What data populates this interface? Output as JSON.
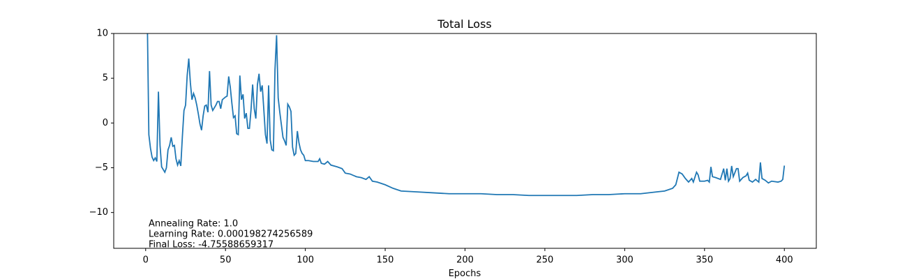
{
  "chart_data": {
    "type": "line",
    "title": "Total Loss",
    "x_label": "Epochs",
    "annotations": [
      "Annealing Rate: 1.0",
      "Learning Rate: 0.000198274256589",
      "Final Loss: -4.75588659317"
    ],
    "xlim": [
      -20,
      420
    ],
    "ylim": [
      -14,
      10
    ],
    "xticks": [
      0,
      50,
      100,
      150,
      200,
      250,
      300,
      350,
      400
    ],
    "yticks": [
      {
        "value": -10,
        "label": "−10"
      },
      {
        "value": -5,
        "label": "−5"
      },
      0,
      5,
      10
    ],
    "series": [
      {
        "name": "Total Loss",
        "color": "#1f77b4",
        "x": [
          1,
          2,
          3,
          4,
          5,
          6,
          7,
          8,
          9,
          10,
          12,
          13,
          14,
          15,
          16,
          17,
          18,
          19,
          20,
          21,
          22,
          23,
          24,
          25,
          26,
          27,
          28,
          29,
          30,
          31,
          32,
          33,
          34,
          35,
          36,
          37,
          38,
          39,
          40,
          41,
          42,
          44,
          45,
          46,
          47,
          48,
          50,
          51,
          52,
          53,
          54,
          55,
          56,
          57,
          58,
          59,
          60,
          61,
          62,
          63,
          64,
          65,
          66,
          67,
          68,
          69,
          70,
          71,
          72,
          73,
          74,
          75,
          76,
          77,
          78,
          79,
          80,
          81,
          82,
          83,
          84,
          85,
          86,
          87,
          88,
          89,
          90,
          91,
          92,
          93,
          94,
          95,
          96,
          97,
          98,
          99,
          100,
          102,
          105,
          108,
          109,
          110,
          112,
          114,
          116,
          120,
          123,
          125,
          128,
          132,
          135,
          138,
          140,
          142,
          145,
          150,
          155,
          160,
          170,
          180,
          190,
          200,
          210,
          220,
          230,
          240,
          250,
          260,
          270,
          280,
          290,
          300,
          310,
          320,
          325,
          330,
          332,
          334,
          336,
          338,
          340,
          342,
          343,
          345,
          346,
          347,
          350,
          352,
          353,
          354,
          355,
          357,
          360,
          362,
          363,
          364,
          365,
          366,
          367,
          368,
          370,
          371,
          372,
          374,
          376,
          377,
          378,
          380,
          382,
          384,
          385,
          386,
          388,
          390,
          392,
          396,
          398,
          399,
          400
        ],
        "values": [
          12,
          -1.3,
          -2.8,
          -3.8,
          -4.2,
          -3.9,
          -4.3,
          3.5,
          -2.5,
          -4.9,
          -5.5,
          -5.0,
          -3,
          -2.5,
          -1.6,
          -2.6,
          -2.5,
          -4,
          -4.7,
          -4.2,
          -4.8,
          -1.5,
          1.4,
          2,
          5.3,
          7.2,
          4.5,
          2.6,
          3.3,
          2.8,
          2,
          1,
          -0.1,
          -0.8,
          0.8,
          1.9,
          2,
          1.2,
          5.8,
          2,
          1.4,
          2,
          2.4,
          2.4,
          1.6,
          2.6,
          2.9,
          3,
          5.2,
          4,
          2.2,
          0.6,
          0.8,
          -1.2,
          -1.3,
          5.3,
          2.6,
          3.2,
          0.5,
          1.1,
          -0.6,
          -0.6,
          1.5,
          4.3,
          1.6,
          0.5,
          4.3,
          5.5,
          3.5,
          4.2,
          1.5,
          -1.3,
          -2.3,
          4.2,
          -1.9,
          -3,
          -3.1,
          6,
          9.8,
          2.8,
          1.2,
          -0.2,
          -1.6,
          -2,
          -2.5,
          2.1,
          1.8,
          1.3,
          -2.7,
          -3.6,
          -3.4,
          -0.9,
          -2.2,
          -3,
          -3.4,
          -3.6,
          -4.2,
          -4.2,
          -4.3,
          -4.3,
          -4.0,
          -4.5,
          -4.6,
          -4.3,
          -4.7,
          -4.9,
          -5.1,
          -5.6,
          -5.7,
          -6.0,
          -6.1,
          -6.3,
          -6.0,
          -6.5,
          -6.6,
          -6.9,
          -7.3,
          -7.6,
          -7.7,
          -7.8,
          -7.9,
          -7.9,
          -7.9,
          -8.0,
          -8.0,
          -8.1,
          -8.1,
          -8.1,
          -8.1,
          -8.0,
          -8.0,
          -7.9,
          -7.9,
          -7.7,
          -7.6,
          -7.3,
          -6.9,
          -5.5,
          -5.7,
          -6.2,
          -6.6,
          -6.2,
          -6.6,
          -5.5,
          -5.8,
          -6.5,
          -6.5,
          -6.4,
          -6.6,
          -4.9,
          -6,
          -6.1,
          -6.3,
          -5.1,
          -6.4,
          -5.1,
          -6.5,
          -6.2,
          -4.8,
          -6,
          -5.1,
          -5.1,
          -6.5,
          -6.1,
          -5.9,
          -5.6,
          -6.4,
          -6.6,
          -6.3,
          -6.6,
          -4.4,
          -6.2,
          -6.4,
          -6.7,
          -6.5,
          -6.6,
          -6.5,
          -6.3,
          -4.76
        ]
      }
    ]
  }
}
